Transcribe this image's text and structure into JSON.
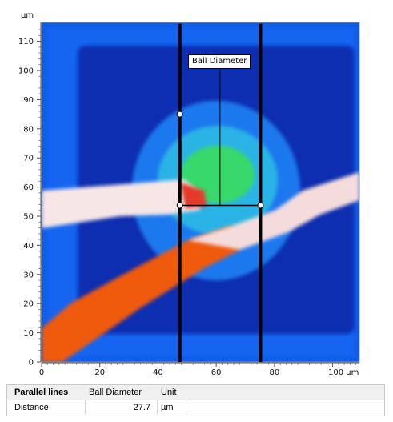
{
  "viewer": {
    "y_unit": "µm",
    "x_unit_label": "100 µm",
    "x_ticks": [
      "0",
      "20",
      "40",
      "60",
      "80"
    ],
    "y_ticks": [
      "0",
      "10",
      "20",
      "30",
      "40",
      "50",
      "60",
      "70",
      "80",
      "90",
      "100",
      "110"
    ],
    "x_range_um": [
      0,
      110
    ],
    "y_range_um": [
      0,
      117
    ],
    "measurement": {
      "tool": "Parallel lines",
      "label": "Ball Diameter",
      "line1_x_um": 47.5,
      "line2_x_um": 75.2,
      "line_y_top_um": 116,
      "line_y_bottom_um": 0,
      "handles_um": [
        [
          47.5,
          85
        ],
        [
          47.5,
          53.7
        ],
        [
          75.2,
          53.7
        ]
      ],
      "connector_y_um": 53.7,
      "leader_x_um": 61.3
    }
  },
  "results": {
    "headers": [
      "Parallel lines",
      "Ball Diameter",
      "Unit"
    ],
    "row": {
      "name": "Distance",
      "value": "27.7",
      "unit": "µm"
    }
  }
}
